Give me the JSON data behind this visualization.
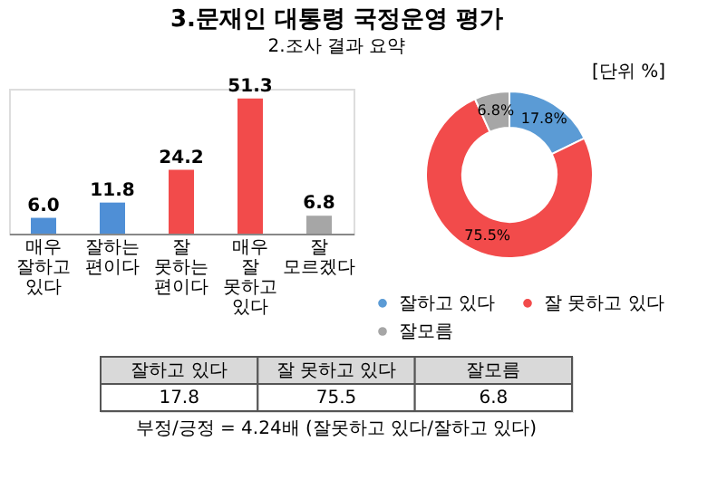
{
  "chart_data": [
    {
      "type": "bar",
      "title": "3.문재인 대통령 국정운영 평가",
      "subtitle": "2.조사 결과 요약",
      "categories": [
        "매우 잘하고 있다",
        "잘하는 편이다",
        "잘 못하는 편이다",
        "매우 잘 못하고 있다",
        "잘 모르겠다"
      ],
      "values": [
        6.0,
        11.8,
        24.2,
        51.3,
        6.8
      ],
      "colors": [
        "#4f8fd6",
        "#4f8fd6",
        "#f24b4b",
        "#f24b4b",
        "#a6a6a6"
      ],
      "value_labels": [
        "6.0",
        "11.8",
        "24.2",
        "51.3",
        "6.8"
      ]
    },
    {
      "type": "donut",
      "categories": [
        "잘하고 있다",
        "잘 못하고 있다",
        "잘모름"
      ],
      "values": [
        17.8,
        75.5,
        6.8
      ],
      "colors": [
        "#5b9bd5",
        "#f24b4b",
        "#a6a6a6"
      ],
      "value_labels": [
        "17.8%",
        "75.5%",
        "6.8%"
      ],
      "legend": "bottom",
      "annotations": [
        "[단위 %]"
      ]
    },
    {
      "type": "other",
      "categories": [
        "잘하고 있다",
        "잘 못하고 있다",
        "잘모름"
      ],
      "values": [
        17.8,
        75.5,
        6.8
      ],
      "value_labels": [
        "17.8",
        "75.5",
        "6.8"
      ],
      "annotations": [
        "부정/긍정 = 4.24배 (잘못하고 있다/잘하고 있다)"
      ]
    }
  ]
}
